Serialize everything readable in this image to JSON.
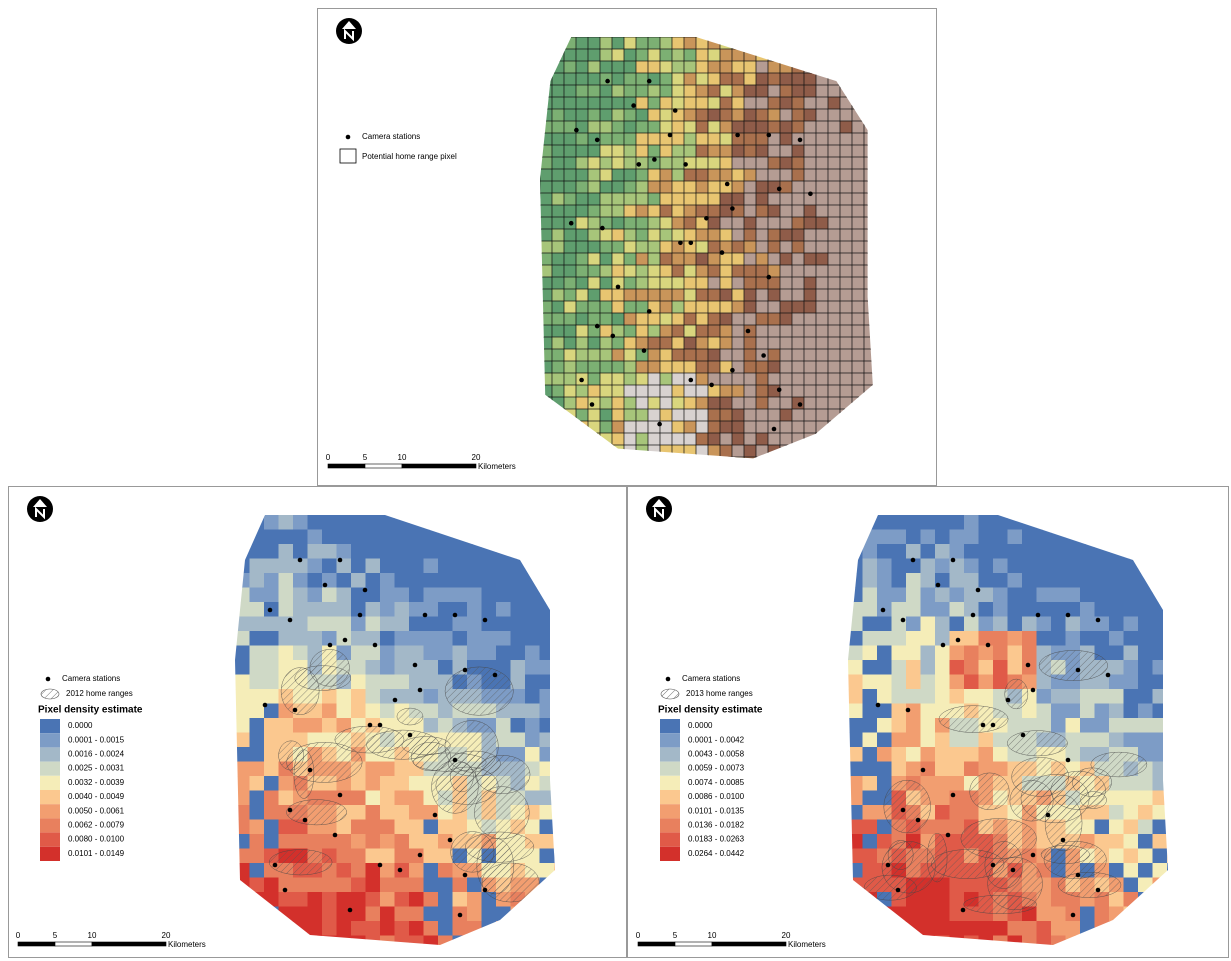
{
  "panels": [
    {
      "legend": {
        "items": [
          "Camera stations",
          "Potential home range pixel"
        ]
      },
      "scale_bar": {
        "labels": [
          "0",
          "5",
          "10",
          "20"
        ],
        "unit": "Kilometers"
      }
    },
    {
      "legend": {
        "items": [
          "Camera stations",
          "2012 home ranges"
        ],
        "title": "Pixel density estimate",
        "classes": [
          {
            "label": "0.0000",
            "color": "#4a74b4"
          },
          {
            "label": "0.0001 - 0.0015",
            "color": "#7d9cc6"
          },
          {
            "label": "0.0016 - 0.0024",
            "color": "#a3b8c8"
          },
          {
            "label": "0.0025 - 0.0031",
            "color": "#cfd9c6"
          },
          {
            "label": "0.0032 - 0.0039",
            "color": "#f5edb8"
          },
          {
            "label": "0.0040 - 0.0049",
            "color": "#fbc88f"
          },
          {
            "label": "0.0050 - 0.0061",
            "color": "#f29e70"
          },
          {
            "label": "0.0062 - 0.0079",
            "color": "#e8805e"
          },
          {
            "label": "0.0080 - 0.0100",
            "color": "#e05a48"
          },
          {
            "label": "0.0101 - 0.0149",
            "color": "#d3302b"
          }
        ]
      },
      "scale_bar": {
        "labels": [
          "0",
          "5",
          "10",
          "20"
        ],
        "unit": "Kilometers"
      }
    },
    {
      "legend": {
        "items": [
          "Camera stations",
          "2013 home ranges"
        ],
        "title": "Pixel density estimate",
        "classes": [
          {
            "label": "0.0000",
            "color": "#4a74b4"
          },
          {
            "label": "0.0001 - 0.0042",
            "color": "#7d9cc6"
          },
          {
            "label": "0.0043 - 0.0058",
            "color": "#a3b8c8"
          },
          {
            "label": "0.0059 - 0.0073",
            "color": "#cfd9c6"
          },
          {
            "label": "0.0074 - 0.0085",
            "color": "#f5edb8"
          },
          {
            "label": "0.0086 - 0.0100",
            "color": "#fbc88f"
          },
          {
            "label": "0.0101 - 0.0135",
            "color": "#f29e70"
          },
          {
            "label": "0.0136 - 0.0182",
            "color": "#e8805e"
          },
          {
            "label": "0.0183 - 0.0263",
            "color": "#e05a48"
          },
          {
            "label": "0.0264 - 0.0442",
            "color": "#d3302b"
          }
        ]
      },
      "scale_bar": {
        "labels": [
          "0",
          "5",
          "10",
          "20"
        ],
        "unit": "Kilometers"
      }
    }
  ]
}
